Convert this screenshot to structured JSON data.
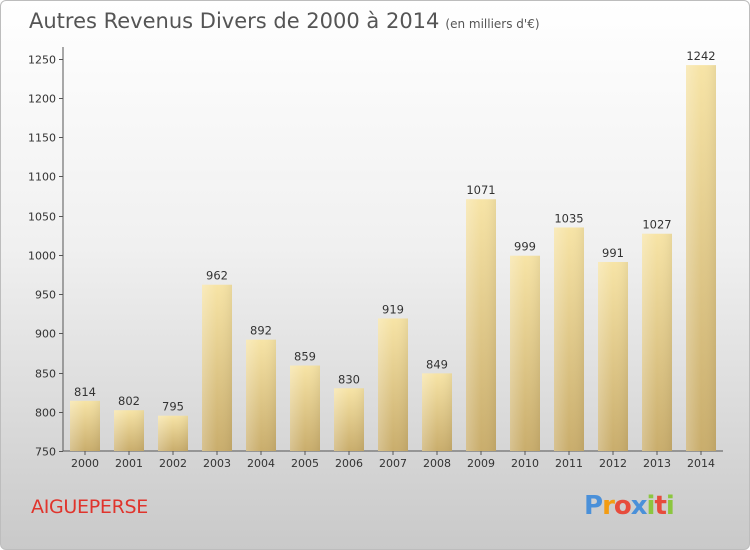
{
  "title": {
    "main": "Autres Revenus Divers de 2000 à 2014",
    "sub": "(en milliers d'€)"
  },
  "place_name": "AIGUEPERSE",
  "logo": {
    "letters": [
      "P",
      "r",
      "o",
      "x",
      "i",
      "t",
      "i"
    ],
    "colors": [
      "#4a90d9",
      "#f39c12",
      "#e74c3c",
      "#4a90d9",
      "#8cc63f",
      "#e74c3c",
      "#8cc63f"
    ]
  },
  "colors": {
    "bar_light": "#f7e4a6",
    "bar_dark": "#c9ad6c",
    "text": "#333333",
    "place": "#e0342c"
  },
  "chart_data": {
    "type": "bar",
    "categories": [
      "2000",
      "2001",
      "2002",
      "2003",
      "2004",
      "2005",
      "2006",
      "2007",
      "2008",
      "2009",
      "2010",
      "2011",
      "2012",
      "2013",
      "2014"
    ],
    "values": [
      814,
      802,
      795,
      962,
      892,
      859,
      830,
      919,
      849,
      1071,
      999,
      1035,
      991,
      1027,
      1242
    ],
    "title": "Autres Revenus Divers de 2000 à 2014",
    "subtitle": "(en milliers d'€)",
    "xlabel": "",
    "ylabel": "",
    "ylim": [
      750,
      1260
    ],
    "yticks": [
      750,
      800,
      850,
      900,
      950,
      1000,
      1050,
      1100,
      1150,
      1200,
      1250
    ],
    "grid": false,
    "data_labels": true
  }
}
